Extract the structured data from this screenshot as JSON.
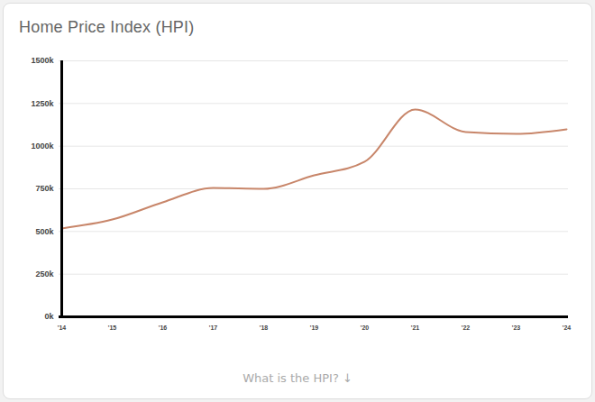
{
  "chart_data": {
    "type": "line",
    "title": "Home Price Index (HPI)",
    "caption": "What is the HPI? ↓",
    "categories": [
      "'14",
      "'15",
      "'16",
      "'17",
      "'18",
      "'19",
      "'20",
      "'21",
      "'22",
      "'23",
      "'24"
    ],
    "values": [
      518000,
      570000,
      671000,
      755000,
      750000,
      829000,
      909000,
      1215000,
      1083000,
      1072000,
      1099000
    ],
    "color": "#c8866a",
    "ylim": [
      0,
      1500000
    ],
    "yticks": [
      {
        "value": 0,
        "label": "0k"
      },
      {
        "value": 250000,
        "label": "250k"
      },
      {
        "value": 500000,
        "label": "500k"
      },
      {
        "value": 750000,
        "label": "750k"
      },
      {
        "value": 1000000,
        "label": "1000k"
      },
      {
        "value": 1250000,
        "label": "1250k"
      },
      {
        "value": 1500000,
        "label": "1500k"
      }
    ],
    "grid": true
  }
}
